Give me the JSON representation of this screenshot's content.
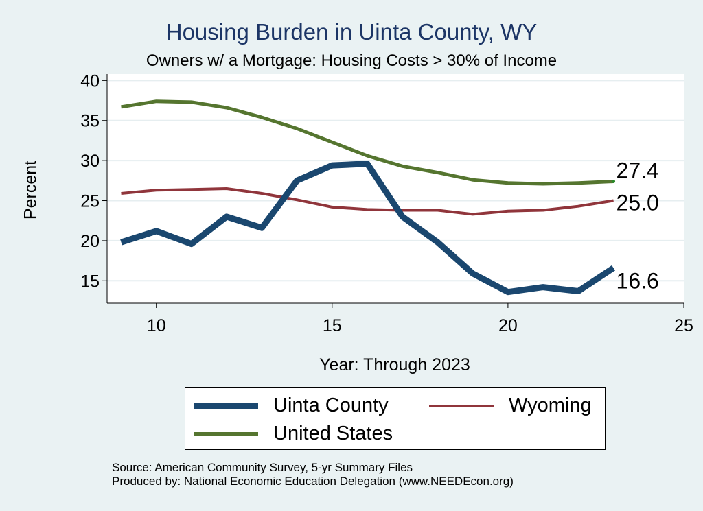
{
  "chart_data": {
    "type": "line",
    "title": "Housing Burden in Uinta County, WY",
    "subtitle": "Owners w/ a Mortgage: Housing Costs > 30% of Income",
    "xlabel": "Year: Through 2023",
    "ylabel": "Percent",
    "xlim": [
      8.6,
      25
    ],
    "ylim": [
      12.2,
      40.8
    ],
    "xticks": [
      10,
      15,
      20,
      25
    ],
    "yticks": [
      15,
      20,
      25,
      30,
      35,
      40
    ],
    "grid": true,
    "legend_position": "bottom",
    "x": [
      9,
      10,
      11,
      12,
      13,
      14,
      15,
      16,
      17,
      18,
      19,
      20,
      21,
      22,
      23
    ],
    "series": [
      {
        "name": "Uinta County",
        "color": "#1a476f",
        "width": 9,
        "values": [
          19.8,
          21.2,
          19.6,
          23.0,
          21.6,
          27.5,
          29.4,
          29.6,
          23.0,
          19.8,
          15.9,
          13.6,
          14.2,
          13.7,
          16.6
        ],
        "end_label": "16.6"
      },
      {
        "name": "Wyoming",
        "color": "#90353b",
        "width": 4,
        "values": [
          25.9,
          26.3,
          26.4,
          26.5,
          25.9,
          25.1,
          24.2,
          23.9,
          23.8,
          23.8,
          23.3,
          23.7,
          23.8,
          24.3,
          25.0
        ],
        "end_label": "25.0"
      },
      {
        "name": "United States",
        "color": "#55752f",
        "width": 5,
        "values": [
          36.7,
          37.4,
          37.3,
          36.6,
          35.4,
          34.0,
          32.3,
          30.6,
          29.3,
          28.5,
          27.6,
          27.2,
          27.1,
          27.2,
          27.4
        ],
        "end_label": "27.4"
      }
    ]
  },
  "legend": {
    "items": [
      {
        "label": "Uinta County",
        "color": "#1a476f"
      },
      {
        "label": "Wyoming",
        "color": "#90353b"
      },
      {
        "label": "United States",
        "color": "#55752f"
      }
    ]
  },
  "source": {
    "line1": "Source: American Community Survey, 5-yr Summary Files",
    "line2": "Produced by: National Economic Education Delegation (www.NEEDEcon.org)"
  }
}
